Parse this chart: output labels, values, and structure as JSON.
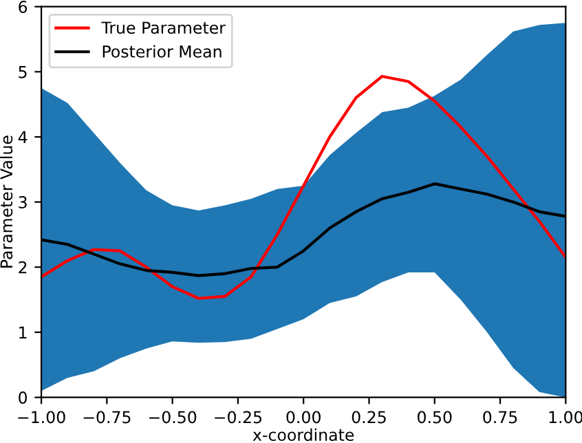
{
  "chart_data": {
    "type": "line",
    "xlabel": "x-coordinate",
    "ylabel": "Parameter Value",
    "x": [
      -1.0,
      -0.9,
      -0.8,
      -0.7,
      -0.6,
      -0.5,
      -0.4,
      -0.3,
      -0.2,
      -0.1,
      0.0,
      0.1,
      0.2,
      0.3,
      0.4,
      0.5,
      0.6,
      0.7,
      0.8,
      0.9,
      1.0
    ],
    "series": [
      {
        "name": "Posterior Mean",
        "color": "#000000",
        "values": [
          2.42,
          2.35,
          2.2,
          2.05,
          1.95,
          1.92,
          1.87,
          1.9,
          1.98,
          2.0,
          2.25,
          2.6,
          2.85,
          3.05,
          3.15,
          3.28,
          3.2,
          3.12,
          3.0,
          2.85,
          2.78
        ],
        "upper": [
          4.75,
          4.52,
          4.06,
          3.6,
          3.18,
          2.95,
          2.87,
          2.95,
          3.05,
          3.2,
          3.25,
          3.72,
          4.06,
          4.38,
          4.45,
          4.63,
          4.88,
          5.26,
          5.62,
          5.72,
          5.75
        ],
        "lower": [
          0.1,
          0.3,
          0.4,
          0.6,
          0.75,
          0.86,
          0.84,
          0.85,
          0.9,
          1.05,
          1.2,
          1.45,
          1.55,
          1.77,
          1.92,
          1.92,
          1.5,
          1.0,
          0.45,
          0.08,
          0.0
        ]
      },
      {
        "name": "True Parameter",
        "color": "#ff0000",
        "values": [
          1.85,
          2.1,
          2.27,
          2.25,
          2.0,
          1.7,
          1.52,
          1.55,
          1.85,
          2.5,
          3.25,
          4.0,
          4.6,
          4.93,
          4.85,
          4.55,
          4.15,
          3.7,
          3.2,
          2.7,
          2.15
        ]
      }
    ],
    "xlim": [
      -1.0,
      1.0
    ],
    "xticks": [
      {
        "value": -1.0,
        "label": "−1.00"
      },
      {
        "value": -0.75,
        "label": "−0.75"
      },
      {
        "value": -0.5,
        "label": "−0.50"
      },
      {
        "value": -0.25,
        "label": "−0.25"
      },
      {
        "value": 0.0,
        "label": "0.00"
      },
      {
        "value": 0.25,
        "label": "0.25"
      },
      {
        "value": 0.5,
        "label": "0.50"
      },
      {
        "value": 0.75,
        "label": "0.75"
      },
      {
        "value": 1.0,
        "label": "1.00"
      }
    ],
    "ylim": [
      0,
      6
    ],
    "yticks": [
      0,
      1,
      2,
      3,
      4,
      5,
      6
    ],
    "legend": "top left",
    "grid": false
  }
}
